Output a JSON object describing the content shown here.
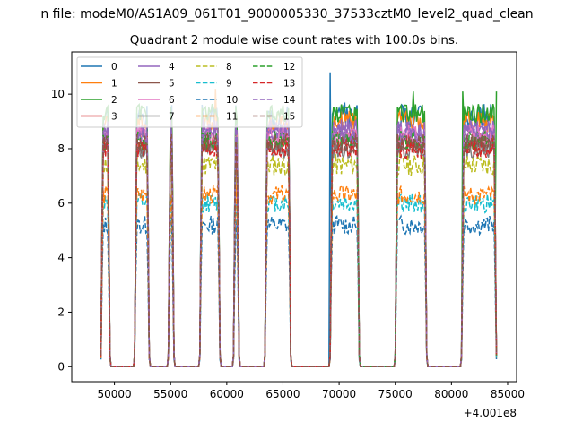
{
  "figure": {
    "suptitle": "n file: modeM0/AS1A09_061T01_9000005330_37533cztM0_level2_quad_clean",
    "offset_text": "+4.001e8"
  },
  "chart_data": {
    "type": "line",
    "title": "Quadrant 2 module wise count rates with 100.0s bins.",
    "xlabel": "",
    "ylabel": "",
    "xlim": [
      46200,
      85800
    ],
    "ylim": [
      -0.55,
      11.55
    ],
    "x_offset": 400100000,
    "xticks": [
      50000,
      55000,
      60000,
      65000,
      70000,
      75000,
      80000,
      85000
    ],
    "xtick_labels": [
      "50000",
      "55000",
      "60000",
      "65000",
      "70000",
      "75000",
      "80000",
      "85000"
    ],
    "yticks": [
      0,
      2,
      4,
      6,
      8,
      10
    ],
    "ytick_labels": [
      "0",
      "2",
      "4",
      "6",
      "8",
      "10"
    ],
    "grid": false,
    "legend_position": "top-left",
    "legend_columns": 4,
    "on_intervals": [
      [
        48800,
        49600
      ],
      [
        51800,
        53100
      ],
      [
        54800,
        55300
      ],
      [
        57600,
        59400
      ],
      [
        60600,
        61100
      ],
      [
        63400,
        65700
      ],
      [
        69200,
        71800
      ],
      [
        75000,
        77800
      ],
      [
        80900,
        84000
      ]
    ],
    "off_intervals": [
      [
        49600,
        51800
      ],
      [
        53100,
        54800
      ],
      [
        55300,
        57600
      ],
      [
        59400,
        60600
      ],
      [
        61100,
        63400
      ],
      [
        65700,
        69200
      ],
      [
        71800,
        75000
      ],
      [
        77800,
        80900
      ]
    ],
    "series": [
      {
        "name": "0",
        "color": "#1f77b4",
        "dash": "solid",
        "mean_rate": 9.2,
        "spike_to": 10.8,
        "noise": 0.45
      },
      {
        "name": "1",
        "color": "#ff7f0e",
        "dash": "solid",
        "mean_rate": 9.0,
        "spike_to": 10.2,
        "noise": 0.4
      },
      {
        "name": "2",
        "color": "#2ca02c",
        "dash": "solid",
        "mean_rate": 9.3,
        "spike_to": 10.1,
        "noise": 0.35
      },
      {
        "name": "3",
        "color": "#d62728",
        "dash": "solid",
        "mean_rate": 8.3,
        "noise": 0.35
      },
      {
        "name": "4",
        "color": "#9467bd",
        "dash": "solid",
        "mean_rate": 8.7,
        "noise": 0.4
      },
      {
        "name": "5",
        "color": "#8c564b",
        "dash": "solid",
        "mean_rate": 8.1,
        "noise": 0.35
      },
      {
        "name": "6",
        "color": "#e377c2",
        "dash": "solid",
        "mean_rate": 8.5,
        "noise": 0.4
      },
      {
        "name": "7",
        "color": "#7f7f7f",
        "dash": "solid",
        "mean_rate": 8.0,
        "noise": 0.35
      },
      {
        "name": "8",
        "color": "#bcbd22",
        "dash": "dashed",
        "mean_rate": 7.4,
        "noise": 0.4
      },
      {
        "name": "9",
        "color": "#17becf",
        "dash": "dashed",
        "mean_rate": 6.0,
        "noise": 0.35
      },
      {
        "name": "10",
        "color": "#1f77b4",
        "dash": "dashed",
        "mean_rate": 5.2,
        "noise": 0.35
      },
      {
        "name": "11",
        "color": "#ff7f0e",
        "dash": "dashed",
        "mean_rate": 6.3,
        "noise": 0.35
      },
      {
        "name": "12",
        "color": "#2ca02c",
        "dash": "dashed",
        "mean_rate": 8.3,
        "noise": 0.35
      },
      {
        "name": "13",
        "color": "#d62728",
        "dash": "dashed",
        "mean_rate": 8.0,
        "noise": 0.35
      },
      {
        "name": "14",
        "color": "#9467bd",
        "dash": "dashed",
        "mean_rate": 8.6,
        "noise": 0.4
      },
      {
        "name": "15",
        "color": "#8c564b",
        "dash": "dashed",
        "mean_rate": 8.2,
        "noise": 0.35
      }
    ]
  }
}
